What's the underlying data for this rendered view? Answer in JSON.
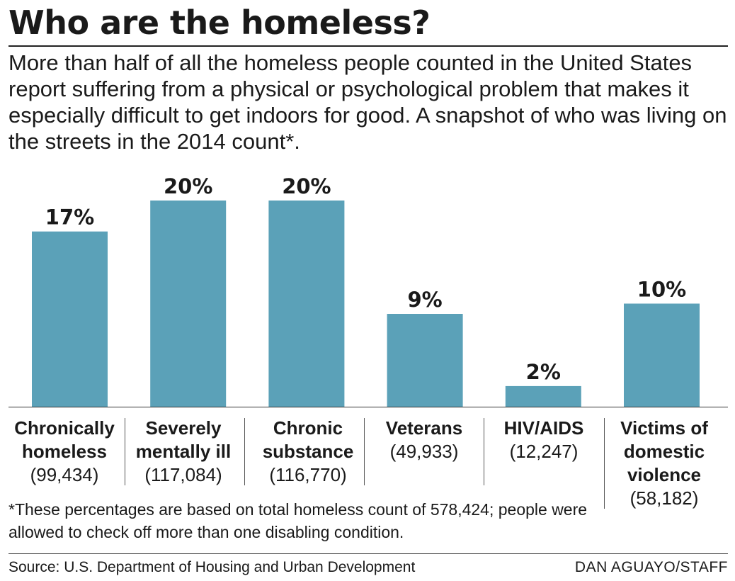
{
  "title": "Who are the homeless?",
  "subtitle": "More than half of all the homeless people counted in the United States report suffering from a physical or psychological problem that makes it especially difficult to get indoors for good. A snapshot of who was living on the streets in the 2014 count*.",
  "chart_data": {
    "type": "bar",
    "categories": [
      "Chronically homeless",
      "Severely mentally ill",
      "Chronic substance",
      "Veterans",
      "HIV/AIDS",
      "Victims of domestic violence"
    ],
    "values": [
      17,
      20,
      20,
      9,
      2,
      10
    ],
    "value_labels": [
      "17%",
      "20%",
      "20%",
      "9%",
      "2%",
      "10%"
    ],
    "counts": [
      "(99,434)",
      "(117,084)",
      "(116,770)",
      "(49,933)",
      "(12,247)",
      "(58,182)"
    ],
    "ylim": [
      0,
      20
    ],
    "grid": false,
    "bar_color": "#5ba1b8"
  },
  "category_labels": [
    {
      "label": "Chronically homeless",
      "count": "(99,434)"
    },
    {
      "label": "Severely mentally ill",
      "count": "(117,084)"
    },
    {
      "label": "Chronic substance",
      "count": "(116,770)"
    },
    {
      "label": "Veterans",
      "count": "(49,933)"
    },
    {
      "label": "HIV/AIDS",
      "count": "(12,247)"
    },
    {
      "label": "Victims of domestic violence",
      "count": "(58,182)"
    }
  ],
  "footnote": "*These percentages are based on total homeless count of 578,424; people were allowed to check off more than one disabling condition.",
  "source": "Source: U.S. Department of Housing and Urban Development",
  "credit": "DAN AGUAYO/STAFF"
}
